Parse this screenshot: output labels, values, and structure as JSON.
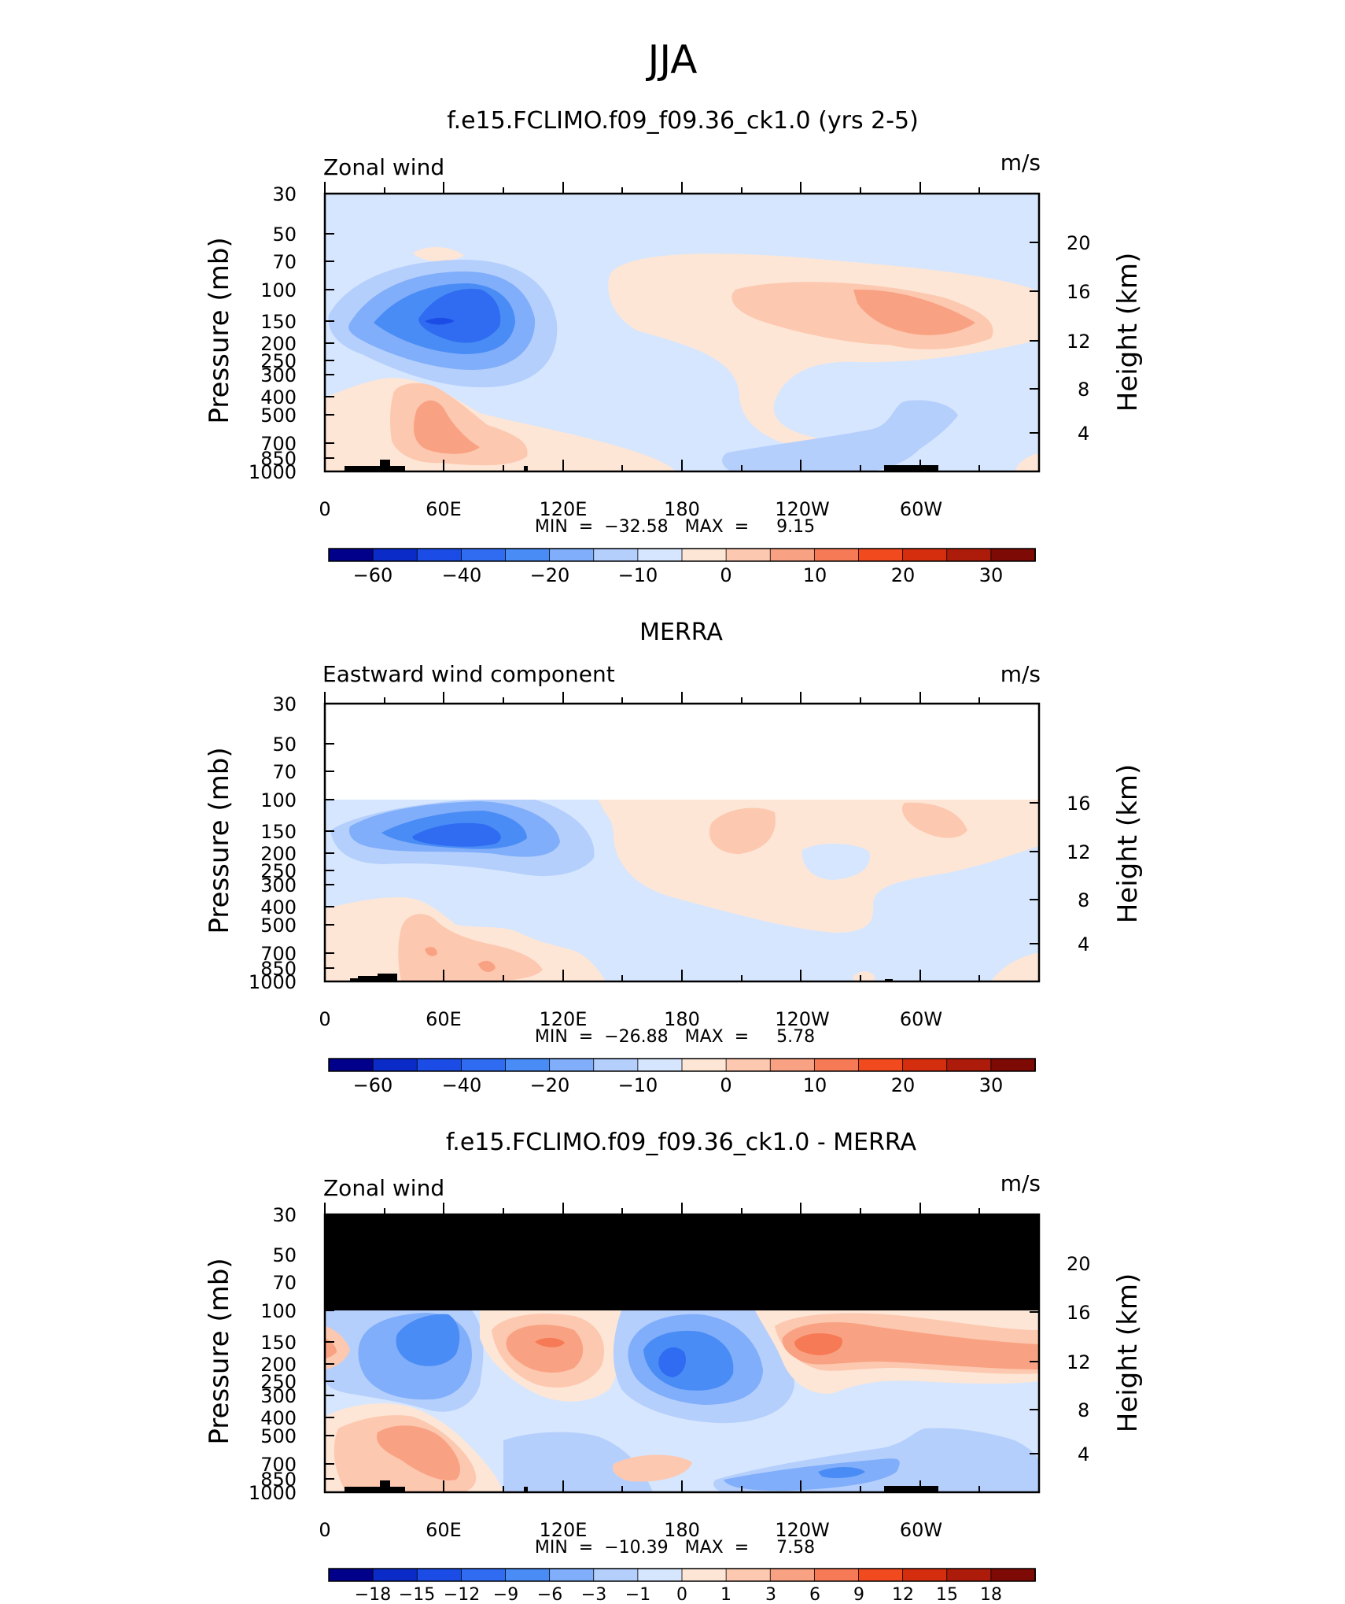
{
  "page": {
    "title": "JJA"
  },
  "panels": [
    {
      "title": "f.e15.FCLIMO.f09_f09.36_ck1.0 (yrs 2-5)",
      "left_label": "Zonal wind",
      "right_label": "m/s",
      "min_max_label": "MIN  =  −32.58   MAX  =     9.15",
      "bar_labels": [
        "−60",
        "−40",
        "−20",
        "−10",
        "0",
        "10",
        "20",
        "30"
      ]
    },
    {
      "title": "MERRA",
      "left_label": "Eastward wind component",
      "right_label": "m/s",
      "min_max_label": "MIN  =  −26.88   MAX  =     5.78",
      "bar_labels": [
        "−60",
        "−40",
        "−20",
        "−10",
        "0",
        "10",
        "20",
        "30"
      ]
    },
    {
      "title": "f.e15.FCLIMO.f09_f09.36_ck1.0 - MERRA",
      "left_label": "Zonal wind",
      "right_label": "m/s",
      "min_max_label": "MIN  =  −10.39   MAX  =     7.58",
      "bar_labels": [
        "−18",
        "−15",
        "−12",
        "−9",
        "−6",
        "−3",
        "−1",
        "0",
        "1",
        "3",
        "6",
        "9",
        "12",
        "15",
        "18"
      ]
    }
  ],
  "axes": {
    "ylabel": "Pressure  (mb)",
    "y2label": "Height  (km)",
    "y_ticks": [
      "30",
      "50",
      "70",
      "100",
      "150",
      "200",
      "250",
      "300",
      "400",
      "500",
      "700",
      "850",
      "1000"
    ],
    "x_ticks": [
      "0",
      "60E",
      "120E",
      "180",
      "120W",
      "60W"
    ]
  },
  "chart_data": [
    {
      "type": "heatmap",
      "title": "f.e15.FCLIMO.f09_f09.36_ck1.0 (yrs 2-5)",
      "variable": "Zonal wind",
      "units": "m/s",
      "xlabel": "",
      "ylabel": "Pressure  (mb)",
      "y2label": "Height  (km)",
      "xlim": [
        0,
        360
      ],
      "ylim": [
        1000,
        30
      ],
      "y_scale": "log",
      "y2_ticks_km": [
        20,
        16,
        12,
        8,
        4
      ],
      "min": -32.58,
      "max": 9.15,
      "colorbar_levels": [
        -70,
        -60,
        -50,
        -40,
        -30,
        -20,
        -15,
        -10,
        -5,
        0,
        5,
        10,
        15,
        20,
        25,
        30
      ],
      "features": [
        {
          "kind": "minimum",
          "lon": 95,
          "p": 150,
          "value": -32.58
        },
        {
          "kind": "maximum",
          "lon": 255,
          "p": 135,
          "value": 9.15
        },
        {
          "kind": "positive",
          "lon": 85,
          "p": 600,
          "value": 8
        },
        {
          "kind": "negative",
          "lon": 305,
          "p": 550,
          "value": -6
        }
      ]
    },
    {
      "type": "heatmap",
      "title": "MERRA",
      "variable": "Eastward wind component",
      "units": "m/s",
      "xlabel": "",
      "ylabel": "Pressure  (mb)",
      "y2label": "Height  (km)",
      "xlim": [
        0,
        360
      ],
      "ylim": [
        1000,
        30
      ],
      "y_scale": "log",
      "y2_ticks_km": [
        16,
        12,
        8,
        4
      ],
      "data_top_p": 100,
      "min": -26.88,
      "max": 5.78,
      "colorbar_levels": [
        -70,
        -60,
        -50,
        -40,
        -30,
        -20,
        -15,
        -10,
        -5,
        0,
        5,
        10,
        15,
        20,
        25,
        30
      ],
      "features": [
        {
          "kind": "minimum",
          "lon": 90,
          "p": 150,
          "value": -26.88
        },
        {
          "kind": "positive",
          "lon": 215,
          "p": 140,
          "value": 5
        },
        {
          "kind": "positive",
          "lon": 300,
          "p": 130,
          "value": 4
        },
        {
          "kind": "positive",
          "lon": 70,
          "p": 700,
          "value": 5.78
        }
      ]
    },
    {
      "type": "heatmap",
      "title": "f.e15.FCLIMO.f09_f09.36_ck1.0 - MERRA",
      "variable": "Zonal wind",
      "units": "m/s",
      "xlabel": "",
      "ylabel": "Pressure  (mb)",
      "y2label": "Height  (km)",
      "xlim": [
        0,
        360
      ],
      "ylim": [
        1000,
        30
      ],
      "y_scale": "log",
      "y2_ticks_km": [
        20,
        16,
        12,
        8,
        4
      ],
      "masked_above_p": 100,
      "min": -10.39,
      "max": 7.58,
      "colorbar_levels": [
        -21,
        -18,
        -15,
        -12,
        -9,
        -6,
        -3,
        -1,
        0,
        1,
        3,
        6,
        9,
        12,
        15,
        18,
        21
      ],
      "features": [
        {
          "kind": "minimum",
          "lon": 175,
          "p": 180,
          "value": -10.39
        },
        {
          "kind": "maximum",
          "lon": 245,
          "p": 150,
          "value": 7.58
        },
        {
          "kind": "positive",
          "lon": 112,
          "p": 150,
          "value": 7
        },
        {
          "kind": "negative",
          "lon": 55,
          "p": 140,
          "value": -8
        },
        {
          "kind": "positive",
          "lon": 55,
          "p": 450,
          "value": 5
        },
        {
          "kind": "negative",
          "lon": 250,
          "p": 800,
          "value": -8
        }
      ]
    }
  ],
  "colors": {
    "scale": [
      "#00008a",
      "#0a2bc8",
      "#1b4ce6",
      "#2f6cf2",
      "#4a8cf5",
      "#80aefa",
      "#b5cffd",
      "#d6e6fe",
      "#fde6d6",
      "#fdc8b0",
      "#f9a283",
      "#f67a55",
      "#f04a1e",
      "#d42e0e",
      "#ad1c0a",
      "#7d0a04"
    ],
    "diff_scale": [
      "#00008a",
      "#0a2bc8",
      "#1b4ce6",
      "#2f6cf2",
      "#4a8cf5",
      "#80aefa",
      "#b5cffd",
      "#d6e6fe",
      "#fde6d6",
      "#fdc8b0",
      "#f9a283",
      "#f67a55",
      "#f04a1e",
      "#d42e0e",
      "#ad1c0a",
      "#7d0a04"
    ],
    "masked": "#000000",
    "topography": "#000000"
  }
}
